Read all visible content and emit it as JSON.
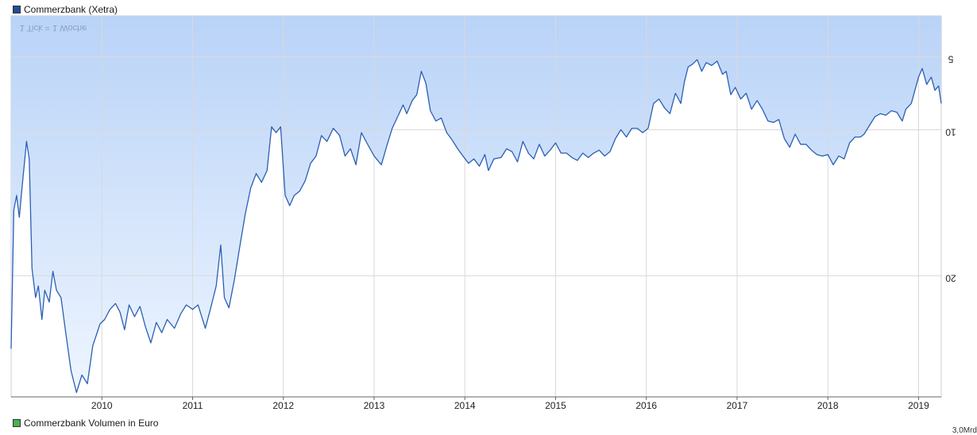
{
  "legend": {
    "price_series": "Commerzbank (Xetra)",
    "volume_series": "Commerzbank Volumen in Euro",
    "price_color": "#1f4e9c",
    "volume_color": "#4caf50"
  },
  "tick_note": "1 Tick = 1 Woche",
  "volume_axis_partial": "3,0Mrd",
  "colors": {
    "line": "#2b5fb5",
    "fill_top": "#b9d3f7",
    "fill_bottom": "#eef5ff",
    "grid": "#d9d9d9",
    "axis": "#666666"
  },
  "chart_data": {
    "type": "area",
    "title": "",
    "xlabel": "",
    "ylabel": "",
    "y_scale": "linear",
    "y_inverted": true,
    "ylim": [
      28.3,
      2.2
    ],
    "y_ticks": [
      5,
      10,
      20
    ],
    "y_tick_labels": [
      "5",
      "10",
      "20"
    ],
    "x_ticks": [
      2010,
      2011,
      2012,
      2013,
      2014,
      2015,
      2016,
      2017,
      2018,
      2019
    ],
    "x_tick_labels": [
      "2010",
      "2011",
      "2012",
      "2013",
      "2014",
      "2015",
      "2016",
      "2017",
      "2018",
      "2019"
    ],
    "xlim": [
      2009.0,
      2019.25
    ],
    "grid": true,
    "legend_position": "top-left",
    "series": [
      {
        "name": "Commerzbank (Xetra)",
        "points": [
          [
            2009.0,
            25.0
          ],
          [
            2009.03,
            15.5
          ],
          [
            2009.06,
            14.5
          ],
          [
            2009.09,
            16.0
          ],
          [
            2009.12,
            14.0
          ],
          [
            2009.17,
            10.8
          ],
          [
            2009.2,
            12.0
          ],
          [
            2009.23,
            19.5
          ],
          [
            2009.27,
            21.5
          ],
          [
            2009.3,
            20.7
          ],
          [
            2009.34,
            23.0
          ],
          [
            2009.37,
            21.0
          ],
          [
            2009.42,
            21.8
          ],
          [
            2009.46,
            19.7
          ],
          [
            2009.5,
            21.0
          ],
          [
            2009.55,
            21.5
          ],
          [
            2009.6,
            23.8
          ],
          [
            2009.66,
            26.5
          ],
          [
            2009.72,
            28.0
          ],
          [
            2009.78,
            26.8
          ],
          [
            2009.84,
            27.4
          ],
          [
            2009.9,
            24.8
          ],
          [
            2009.98,
            23.3
          ],
          [
            2010.03,
            23.0
          ],
          [
            2010.09,
            22.3
          ],
          [
            2010.15,
            21.9
          ],
          [
            2010.2,
            22.5
          ],
          [
            2010.25,
            23.7
          ],
          [
            2010.3,
            22.0
          ],
          [
            2010.36,
            22.8
          ],
          [
            2010.42,
            22.1
          ],
          [
            2010.48,
            23.5
          ],
          [
            2010.54,
            24.6
          ],
          [
            2010.6,
            23.2
          ],
          [
            2010.66,
            23.9
          ],
          [
            2010.72,
            23.0
          ],
          [
            2010.8,
            23.6
          ],
          [
            2010.87,
            22.6
          ],
          [
            2010.93,
            22.0
          ],
          [
            2011.0,
            22.3
          ],
          [
            2011.06,
            22.0
          ],
          [
            2011.14,
            23.6
          ],
          [
            2011.2,
            22.2
          ],
          [
            2011.26,
            20.7
          ],
          [
            2011.31,
            17.9
          ],
          [
            2011.35,
            21.5
          ],
          [
            2011.4,
            22.2
          ],
          [
            2011.46,
            20.3
          ],
          [
            2011.52,
            18.0
          ],
          [
            2011.58,
            15.8
          ],
          [
            2011.64,
            14.0
          ],
          [
            2011.7,
            13.0
          ],
          [
            2011.76,
            13.6
          ],
          [
            2011.82,
            12.8
          ],
          [
            2011.87,
            9.8
          ],
          [
            2011.92,
            10.2
          ],
          [
            2011.97,
            9.8
          ],
          [
            2012.02,
            14.5
          ],
          [
            2012.07,
            15.2
          ],
          [
            2012.12,
            14.5
          ],
          [
            2012.18,
            14.2
          ],
          [
            2012.24,
            13.5
          ],
          [
            2012.3,
            12.3
          ],
          [
            2012.36,
            11.8
          ],
          [
            2012.42,
            10.4
          ],
          [
            2012.48,
            10.8
          ],
          [
            2012.55,
            9.9
          ],
          [
            2012.62,
            10.4
          ],
          [
            2012.68,
            11.8
          ],
          [
            2012.74,
            11.3
          ],
          [
            2012.8,
            12.4
          ],
          [
            2012.86,
            10.2
          ],
          [
            2012.92,
            10.9
          ],
          [
            2013.0,
            11.8
          ],
          [
            2013.08,
            12.4
          ],
          [
            2013.14,
            11.1
          ],
          [
            2013.2,
            9.9
          ],
          [
            2013.26,
            9.1
          ],
          [
            2013.32,
            8.3
          ],
          [
            2013.36,
            8.9
          ],
          [
            2013.42,
            8.0
          ],
          [
            2013.47,
            7.6
          ],
          [
            2013.52,
            6.0
          ],
          [
            2013.57,
            6.8
          ],
          [
            2013.62,
            8.7
          ],
          [
            2013.68,
            9.4
          ],
          [
            2013.74,
            9.2
          ],
          [
            2013.8,
            10.2
          ],
          [
            2013.86,
            10.7
          ],
          [
            2013.92,
            11.3
          ],
          [
            2013.98,
            11.8
          ],
          [
            2014.04,
            12.3
          ],
          [
            2014.1,
            12.0
          ],
          [
            2014.16,
            12.5
          ],
          [
            2014.22,
            11.7
          ],
          [
            2014.26,
            12.8
          ],
          [
            2014.32,
            12.0
          ],
          [
            2014.4,
            11.9
          ],
          [
            2014.46,
            11.3
          ],
          [
            2014.52,
            11.5
          ],
          [
            2014.58,
            12.2
          ],
          [
            2014.64,
            10.8
          ],
          [
            2014.7,
            11.6
          ],
          [
            2014.76,
            12.0
          ],
          [
            2014.82,
            11.0
          ],
          [
            2014.88,
            11.8
          ],
          [
            2014.94,
            11.4
          ],
          [
            2015.0,
            10.9
          ],
          [
            2015.06,
            11.6
          ],
          [
            2015.12,
            11.6
          ],
          [
            2015.18,
            11.9
          ],
          [
            2015.24,
            12.1
          ],
          [
            2015.3,
            11.6
          ],
          [
            2015.36,
            11.9
          ],
          [
            2015.42,
            11.6
          ],
          [
            2015.48,
            11.4
          ],
          [
            2015.54,
            11.8
          ],
          [
            2015.6,
            11.5
          ],
          [
            2015.66,
            10.6
          ],
          [
            2015.72,
            10.0
          ],
          [
            2015.78,
            10.5
          ],
          [
            2015.84,
            9.9
          ],
          [
            2015.9,
            9.9
          ],
          [
            2015.96,
            10.2
          ],
          [
            2016.02,
            9.9
          ],
          [
            2016.08,
            8.2
          ],
          [
            2016.14,
            7.9
          ],
          [
            2016.2,
            8.5
          ],
          [
            2016.26,
            8.9
          ],
          [
            2016.32,
            7.5
          ],
          [
            2016.38,
            8.2
          ],
          [
            2016.42,
            6.7
          ],
          [
            2016.46,
            5.7
          ],
          [
            2016.51,
            5.5
          ],
          [
            2016.56,
            5.2
          ],
          [
            2016.61,
            6.0
          ],
          [
            2016.66,
            5.4
          ],
          [
            2016.72,
            5.6
          ],
          [
            2016.78,
            5.3
          ],
          [
            2016.84,
            6.2
          ],
          [
            2016.88,
            6.0
          ],
          [
            2016.93,
            7.6
          ],
          [
            2016.98,
            7.1
          ],
          [
            2017.04,
            7.9
          ],
          [
            2017.1,
            7.5
          ],
          [
            2017.16,
            8.6
          ],
          [
            2017.22,
            8.0
          ],
          [
            2017.28,
            8.6
          ],
          [
            2017.34,
            9.4
          ],
          [
            2017.4,
            9.5
          ],
          [
            2017.46,
            9.3
          ],
          [
            2017.52,
            10.6
          ],
          [
            2017.58,
            11.2
          ],
          [
            2017.64,
            10.3
          ],
          [
            2017.7,
            11.0
          ],
          [
            2017.76,
            11.0
          ],
          [
            2017.82,
            11.4
          ],
          [
            2017.88,
            11.7
          ],
          [
            2017.94,
            11.8
          ],
          [
            2018.0,
            11.7
          ],
          [
            2018.06,
            12.4
          ],
          [
            2018.12,
            11.8
          ],
          [
            2018.18,
            12.0
          ],
          [
            2018.24,
            10.9
          ],
          [
            2018.3,
            10.5
          ],
          [
            2018.36,
            10.5
          ],
          [
            2018.4,
            10.3
          ],
          [
            2018.46,
            9.7
          ],
          [
            2018.52,
            9.1
          ],
          [
            2018.58,
            8.9
          ],
          [
            2018.64,
            9.0
          ],
          [
            2018.7,
            8.7
          ],
          [
            2018.76,
            8.8
          ],
          [
            2018.82,
            9.4
          ],
          [
            2018.86,
            8.6
          ],
          [
            2018.92,
            8.2
          ],
          [
            2019.0,
            6.4
          ],
          [
            2019.04,
            5.8
          ],
          [
            2019.09,
            6.9
          ],
          [
            2019.14,
            6.4
          ],
          [
            2019.18,
            7.3
          ],
          [
            2019.22,
            7.0
          ],
          [
            2019.25,
            8.2
          ]
        ]
      }
    ]
  }
}
